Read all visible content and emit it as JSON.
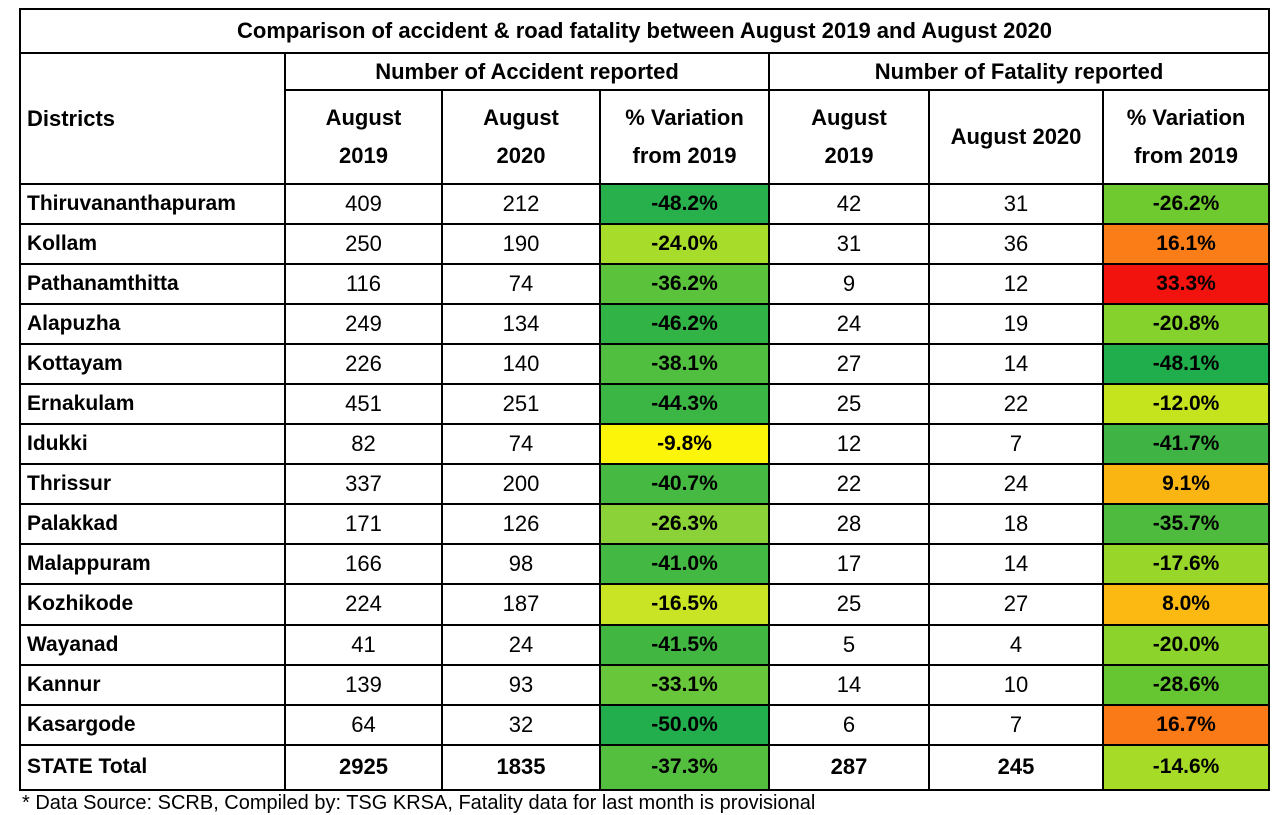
{
  "title": "Comparison of accident & road fatality between August 2019 and August 2020",
  "group_headers": {
    "accident": "Number of Accident reported",
    "fatality": "Number of Fatality reported"
  },
  "column_headers": {
    "districts": "Districts",
    "acc_2019": [
      "August",
      "2019"
    ],
    "acc_2020": [
      "August",
      "2020"
    ],
    "acc_var": [
      "% Variation",
      "from 2019"
    ],
    "fat_2019": [
      "August",
      "2019"
    ],
    "fat_2020": "August 2020",
    "fat_var": [
      "% Variation",
      "from 2019"
    ]
  },
  "chart_data": {
    "type": "table",
    "title": "Comparison of accident & road fatality between August 2019 and August 2020",
    "columns": [
      "Districts",
      "Accident August 2019",
      "Accident August 2020",
      "Accident % Variation from 2019",
      "Fatality August 2019",
      "Fatality August 2020",
      "Fatality % Variation from 2019"
    ],
    "rows": [
      {
        "district": "Thiruvananthapuram",
        "acc_2019": 409,
        "acc_2020": 212,
        "acc_var": "-48.2%",
        "acc_var_color": "#27b04b",
        "fat_2019": 42,
        "fat_2020": 31,
        "fat_var": "-26.2%",
        "fat_var_color": "#6fca30"
      },
      {
        "district": "Kollam",
        "acc_2019": 250,
        "acc_2020": 190,
        "acc_var": "-24.0%",
        "acc_var_color": "#a8dc2a",
        "fat_2019": 31,
        "fat_2020": 36,
        "fat_var": "16.1%",
        "fat_var_color": "#fa7d18"
      },
      {
        "district": "Pathanamthitta",
        "acc_2019": 116,
        "acc_2020": 74,
        "acc_var": "-36.2%",
        "acc_var_color": "#5bc23c",
        "fat_2019": 9,
        "fat_2020": 12,
        "fat_var": "33.3%",
        "fat_var_color": "#f2120e"
      },
      {
        "district": "Alapuzha",
        "acc_2019": 249,
        "acc_2020": 134,
        "acc_var": "-46.2%",
        "acc_var_color": "#31b346",
        "fat_2019": 24,
        "fat_2020": 19,
        "fat_var": "-20.8%",
        "fat_var_color": "#86d22c"
      },
      {
        "district": "Kottayam",
        "acc_2019": 226,
        "acc_2020": 140,
        "acc_var": "-38.1%",
        "acc_var_color": "#50be3e",
        "fat_2019": 27,
        "fat_2020": 14,
        "fat_var": "-48.1%",
        "fat_var_color": "#1fae4b"
      },
      {
        "district": "Ernakulam",
        "acc_2019": 451,
        "acc_2020": 251,
        "acc_var": "-44.3%",
        "acc_var_color": "#3bb644",
        "fat_2019": 25,
        "fat_2020": 22,
        "fat_var": "-12.0%",
        "fat_var_color": "#c5e41d"
      },
      {
        "district": "Idukki",
        "acc_2019": 82,
        "acc_2020": 74,
        "acc_var": "-9.8%",
        "acc_var_color": "#fcf50a",
        "fat_2019": 12,
        "fat_2020": 7,
        "fat_var": "-41.7%",
        "fat_var_color": "#3fb444"
      },
      {
        "district": "Thrissur",
        "acc_2019": 337,
        "acc_2020": 200,
        "acc_var": "-40.7%",
        "acc_var_color": "#45b942",
        "fat_2019": 22,
        "fat_2020": 24,
        "fat_var": "9.1%",
        "fat_var_color": "#fbb513"
      },
      {
        "district": "Palakkad",
        "acc_2019": 171,
        "acc_2020": 126,
        "acc_var": "-26.3%",
        "acc_var_color": "#8bd238",
        "fat_2019": 28,
        "fat_2020": 18,
        "fat_var": "-35.7%",
        "fat_var_color": "#4eba3e"
      },
      {
        "district": "Malappuram",
        "acc_2019": 166,
        "acc_2020": 98,
        "acc_var": "-41.0%",
        "acc_var_color": "#43b842",
        "fat_2019": 17,
        "fat_2020": 14,
        "fat_var": "-17.6%",
        "fat_var_color": "#98d729"
      },
      {
        "district": "Kozhikode",
        "acc_2019": 224,
        "acc_2020": 187,
        "acc_var": "-16.5%",
        "acc_var_color": "#c8e425",
        "fat_2019": 25,
        "fat_2020": 27,
        "fat_var": "8.0%",
        "fat_var_color": "#fbb912"
      },
      {
        "district": "Wayanad",
        "acc_2019": 41,
        "acc_2020": 24,
        "acc_var": "-41.5%",
        "acc_var_color": "#41b742",
        "fat_2019": 5,
        "fat_2020": 4,
        "fat_var": "-20.0%",
        "fat_var_color": "#8cd32b"
      },
      {
        "district": "Kannur",
        "acc_2019": 139,
        "acc_2020": 93,
        "acc_var": "-33.1%",
        "acc_var_color": "#68c63b",
        "fat_2019": 14,
        "fat_2020": 10,
        "fat_var": "-28.6%",
        "fat_var_color": "#66c632"
      },
      {
        "district": "Kasargode",
        "acc_2019": 64,
        "acc_2020": 32,
        "acc_var": "-50.0%",
        "acc_var_color": "#22ae4d",
        "fat_2019": 6,
        "fat_2020": 7,
        "fat_var": "16.7%",
        "fat_var_color": "#fa7a17"
      },
      {
        "district": "STATE Total",
        "acc_2019": 2925,
        "acc_2020": 1835,
        "acc_var": "-37.3%",
        "acc_var_color": "#54bf3e",
        "fat_2019": 287,
        "fat_2020": 245,
        "fat_var": "-14.6%",
        "fat_var_color": "#a6dc27"
      }
    ]
  },
  "footnote": "* Data Source: SCRB, Compiled by: TSG KRSA, Fatality data for last month is provisional"
}
